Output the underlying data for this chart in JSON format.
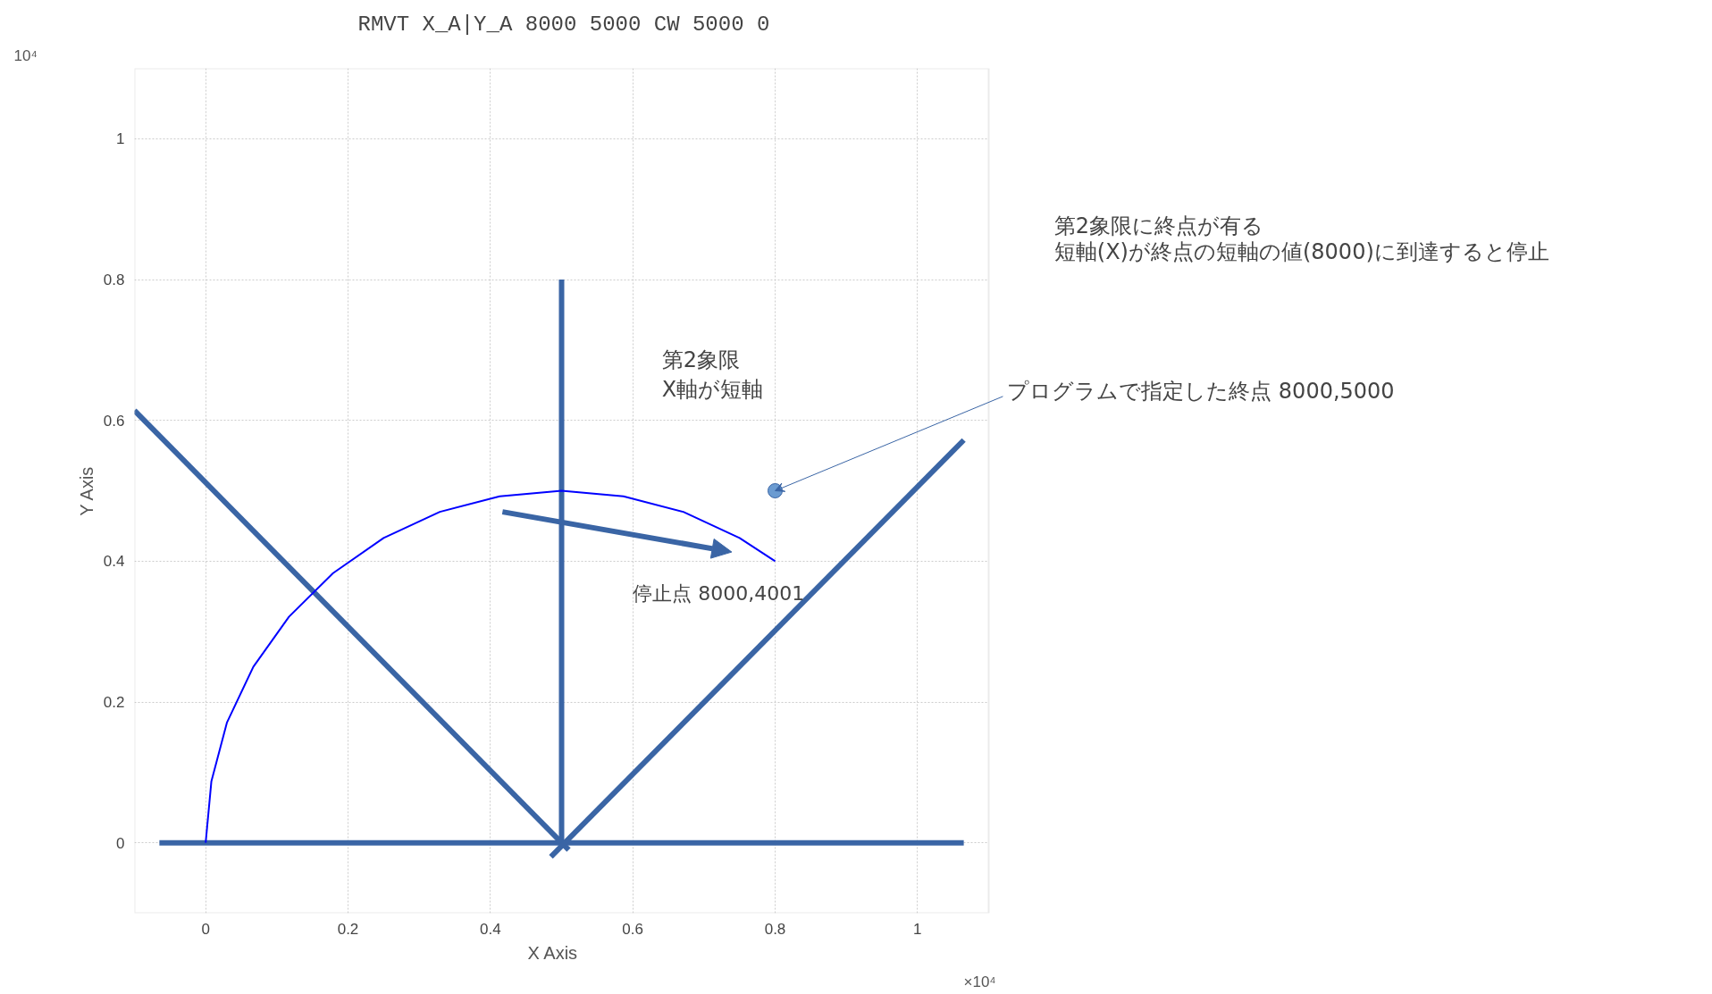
{
  "chart_data": {
    "type": "line",
    "title": "RMVT X_A|Y_A 8000 5000 CW 5000 0",
    "xlabel": "X Axis",
    "ylabel": "Y Axis",
    "xlim": [
      -0.1,
      1.1
    ],
    "ylim": [
      -0.1,
      1.1
    ],
    "xticks": [
      0,
      0.2,
      0.4,
      0.6,
      0.8,
      1
    ],
    "yticks": [
      0,
      0.2,
      0.4,
      0.6,
      0.8,
      1
    ],
    "grid": true,
    "line_style": "solid",
    "series": [
      {
        "color": "#3a65a5",
        "x": [
          -0.065,
          1.065
        ],
        "values": [
          0,
          0
        ]
      },
      {
        "color": "#3a65a5",
        "x": [
          0.5,
          0.5
        ],
        "values": [
          0,
          0.8
        ]
      },
      {
        "color": "#3a65a5",
        "x": [
          -0.1,
          0.51
        ],
        "values": [
          0.614,
          -0.01
        ]
      },
      {
        "color": "#3a65a5",
        "x": [
          0.485,
          1.065
        ],
        "values": [
          -0.02,
          0.572
        ]
      },
      {
        "color": "#0000ff",
        "x": [
          0,
          0.008,
          0.03,
          0.067,
          0.117,
          0.179,
          0.25,
          0.329,
          0.413,
          0.5,
          0.587,
          0.671,
          0.75,
          0.8
        ],
        "values": [
          0,
          0.087,
          0.171,
          0.25,
          0.321,
          0.383,
          0.433,
          0.47,
          0.492,
          0.5,
          0.492,
          0.47,
          0.433,
          0.4
        ]
      },
      {
        "type": "scatter",
        "marker": "circle",
        "color": "#6b9bd1",
        "x": [
          0.8
        ],
        "values": [
          0.5
        ]
      }
    ],
    "annotations": [
      "×10⁴",
      "10⁴",
      "第2象限\nX軸が短軸",
      {
        "text": "停止点 8000,4001",
        "x": 0.8,
        "y": 0.4
      },
      {
        "text": "プログラムで指定した終点 8000,5000",
        "x": 0.8,
        "y": 0.5
      },
      "第2象限に終点が有る",
      "短軸(X)が終点の短軸の値(8000)に到達すると停止"
    ]
  }
}
